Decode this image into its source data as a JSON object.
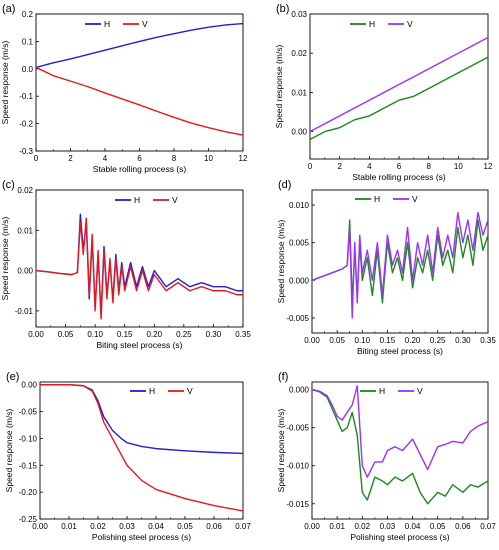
{
  "chart_data": [
    {
      "panel": "(a)",
      "type": "line",
      "xlabel": "Stable rolling process (s)",
      "ylabel": "Speed response (m/s)",
      "xlim": [
        0,
        12
      ],
      "ylim": [
        -0.3,
        0.2
      ],
      "xticks": [
        0,
        2,
        4,
        6,
        8,
        10,
        12
      ],
      "yticks": [
        -0.3,
        -0.2,
        -0.1,
        0.0,
        0.1,
        0.2
      ],
      "ytick_labels": [
        "-0.3",
        "-0.2",
        "-0.1",
        "0.0",
        "0.1",
        "0.2"
      ],
      "legend_placement": "top-center",
      "series": [
        {
          "name": "H",
          "color": "#1f1fd6",
          "x": [
            0,
            1,
            2,
            3,
            4,
            5,
            6,
            7,
            8,
            9,
            10,
            11,
            12
          ],
          "values": [
            0.005,
            0.022,
            0.036,
            0.052,
            0.068,
            0.084,
            0.1,
            0.115,
            0.128,
            0.141,
            0.152,
            0.16,
            0.165
          ]
        },
        {
          "name": "V",
          "color": "#e31a1c",
          "x": [
            0,
            1,
            2,
            3,
            4,
            5,
            6,
            7,
            8,
            9,
            10,
            11,
            12
          ],
          "values": [
            0.005,
            -0.025,
            -0.045,
            -0.065,
            -0.088,
            -0.11,
            -0.132,
            -0.155,
            -0.177,
            -0.198,
            -0.215,
            -0.23,
            -0.242
          ]
        }
      ]
    },
    {
      "panel": "(b)",
      "type": "line",
      "xlabel": "Stable rolling process (s)",
      "ylabel": "Speed response (m/s)",
      "xlim": [
        0,
        12
      ],
      "ylim": [
        -0.007,
        0.03
      ],
      "xticks": [
        0,
        2,
        4,
        6,
        8,
        10,
        12
      ],
      "yticks": [
        0.0,
        0.01,
        0.02,
        0.03
      ],
      "ytick_labels": [
        "0.00",
        "0.01",
        "0.02",
        "0.03"
      ],
      "legend_placement": "top-left",
      "series": [
        {
          "name": "H",
          "color": "#1a8a1a",
          "x": [
            0,
            1,
            2,
            3,
            4,
            5,
            6,
            7,
            8,
            9,
            10,
            11,
            12
          ],
          "values": [
            -0.002,
            0.0,
            0.001,
            0.003,
            0.004,
            0.006,
            0.008,
            0.009,
            0.011,
            0.013,
            0.015,
            0.017,
            0.019
          ]
        },
        {
          "name": "V",
          "color": "#9b30ff",
          "x": [
            0,
            1,
            2,
            3,
            4,
            5,
            6,
            7,
            8,
            9,
            10,
            11,
            12
          ],
          "values": [
            0.0,
            0.002,
            0.004,
            0.006,
            0.008,
            0.01,
            0.012,
            0.014,
            0.016,
            0.018,
            0.02,
            0.022,
            0.024
          ]
        }
      ]
    },
    {
      "panel": "(c)",
      "type": "line",
      "xlabel": "Biting steel process (s)",
      "ylabel": "Speed response (m/s)",
      "xlim": [
        0,
        0.35
      ],
      "ylim": [
        -0.014,
        0.02
      ],
      "xticks": [
        0.0,
        0.05,
        0.1,
        0.15,
        0.2,
        0.25,
        0.3,
        0.35
      ],
      "xtick_labels": [
        "0.00",
        "0.05",
        "0.10",
        "0.15",
        "0.20",
        "0.25",
        "0.30",
        "0.35"
      ],
      "yticks": [
        -0.01,
        0.0,
        0.01,
        0.02
      ],
      "ytick_labels": [
        "-0.01",
        "0.00",
        "0.01",
        "0.02"
      ],
      "legend_placement": "top-right",
      "series": [
        {
          "name": "H",
          "color": "#1f1fd6",
          "x": [
            0,
            0.02,
            0.04,
            0.06,
            0.07,
            0.075,
            0.08,
            0.085,
            0.09,
            0.095,
            0.1,
            0.105,
            0.11,
            0.115,
            0.12,
            0.125,
            0.13,
            0.135,
            0.14,
            0.145,
            0.15,
            0.16,
            0.17,
            0.18,
            0.19,
            0.2,
            0.22,
            0.24,
            0.26,
            0.28,
            0.3,
            0.32,
            0.34,
            0.35
          ],
          "values": [
            0.0,
            -0.0003,
            -0.0007,
            -0.001,
            -0.0005,
            0.014,
            0.005,
            0.012,
            -0.007,
            0.008,
            -0.009,
            0.004,
            -0.011,
            0.006,
            -0.006,
            0.002,
            -0.007,
            0.004,
            -0.005,
            0.002,
            -0.004,
            0.002,
            -0.004,
            0.001,
            -0.004,
            0.0,
            -0.004,
            -0.002,
            -0.004,
            -0.003,
            -0.004,
            -0.004,
            -0.005,
            -0.005
          ]
        },
        {
          "name": "V",
          "color": "#e31a1c",
          "x": [
            0,
            0.02,
            0.04,
            0.06,
            0.07,
            0.075,
            0.08,
            0.085,
            0.09,
            0.095,
            0.1,
            0.105,
            0.11,
            0.115,
            0.12,
            0.125,
            0.13,
            0.135,
            0.14,
            0.145,
            0.15,
            0.16,
            0.17,
            0.18,
            0.19,
            0.2,
            0.22,
            0.24,
            0.26,
            0.28,
            0.3,
            0.32,
            0.34,
            0.35
          ],
          "values": [
            0.0,
            -0.0003,
            -0.0007,
            -0.001,
            -0.0005,
            0.012,
            0.004,
            0.013,
            -0.006,
            0.009,
            -0.01,
            0.005,
            -0.012,
            0.005,
            -0.007,
            0.003,
            -0.008,
            0.003,
            -0.006,
            0.001,
            -0.005,
            0.001,
            -0.005,
            0.0,
            -0.005,
            -0.001,
            -0.005,
            -0.003,
            -0.005,
            -0.004,
            -0.005,
            -0.005,
            -0.006,
            -0.006
          ]
        }
      ]
    },
    {
      "panel": "(d)",
      "type": "line",
      "xlabel": "Biting steel process (s)",
      "ylabel": "Speed response (m/s)",
      "xlim": [
        0,
        0.35
      ],
      "ylim": [
        -0.007,
        0.012
      ],
      "xticks": [
        0.0,
        0.05,
        0.1,
        0.15,
        0.2,
        0.25,
        0.3,
        0.35
      ],
      "xtick_labels": [
        "0.00",
        "0.05",
        "0.10",
        "0.15",
        "0.20",
        "0.25",
        "0.30",
        "0.35"
      ],
      "yticks": [
        -0.005,
        0.0,
        0.005,
        0.01
      ],
      "ytick_labels": [
        "-0.005",
        "0.000",
        "0.005",
        "0.010"
      ],
      "legend_placement": "top-center",
      "series": [
        {
          "name": "H",
          "color": "#1a8a1a",
          "x": [
            0,
            0.02,
            0.04,
            0.06,
            0.07,
            0.075,
            0.08,
            0.085,
            0.09,
            0.095,
            0.1,
            0.11,
            0.12,
            0.13,
            0.14,
            0.15,
            0.16,
            0.17,
            0.18,
            0.19,
            0.2,
            0.21,
            0.22,
            0.23,
            0.24,
            0.25,
            0.26,
            0.27,
            0.28,
            0.29,
            0.3,
            0.31,
            0.32,
            0.33,
            0.34,
            0.35
          ],
          "values": [
            0.0,
            0.0005,
            0.001,
            0.0015,
            0.002,
            0.008,
            -0.003,
            0.004,
            -0.002,
            0.005,
            0.0,
            0.003,
            -0.002,
            0.004,
            -0.003,
            0.005,
            0.001,
            0.003,
            0.0,
            0.005,
            -0.001,
            0.003,
            0.001,
            0.004,
            0.0,
            0.006,
            0.002,
            0.004,
            0.001,
            0.007,
            0.003,
            0.006,
            0.002,
            0.008,
            0.004,
            0.006
          ]
        },
        {
          "name": "V",
          "color": "#9b30ff",
          "x": [
            0,
            0.02,
            0.04,
            0.06,
            0.07,
            0.075,
            0.08,
            0.085,
            0.09,
            0.095,
            0.1,
            0.11,
            0.12,
            0.13,
            0.14,
            0.15,
            0.16,
            0.17,
            0.18,
            0.19,
            0.2,
            0.21,
            0.22,
            0.23,
            0.24,
            0.25,
            0.26,
            0.27,
            0.28,
            0.29,
            0.3,
            0.31,
            0.32,
            0.33,
            0.34,
            0.35
          ],
          "values": [
            0.0,
            0.0005,
            0.001,
            0.0015,
            0.002,
            0.007,
            -0.005,
            0.005,
            -0.003,
            0.006,
            0.001,
            0.004,
            0.0,
            0.005,
            -0.002,
            0.006,
            0.002,
            0.004,
            0.001,
            0.007,
            0.0,
            0.005,
            0.002,
            0.006,
            0.001,
            0.007,
            0.003,
            0.006,
            0.003,
            0.009,
            0.005,
            0.008,
            0.004,
            0.009,
            0.006,
            0.008
          ]
        }
      ]
    },
    {
      "panel": "(e)",
      "type": "line",
      "xlabel": "Polishing steel process (s)",
      "ylabel": "Speed response (m/s)",
      "xlim": [
        0,
        0.07
      ],
      "ylim": [
        -0.25,
        0.005
      ],
      "xticks": [
        0.0,
        0.01,
        0.02,
        0.03,
        0.04,
        0.05,
        0.06,
        0.07
      ],
      "xtick_labels": [
        "0.00",
        "0.01",
        "0.02",
        "0.03",
        "0.04",
        "0.05",
        "0.06",
        "0.07"
      ],
      "yticks": [
        -0.25,
        -0.2,
        -0.15,
        -0.1,
        -0.05,
        0.0
      ],
      "ytick_labels": [
        "-0.25",
        "-0.20",
        "-0.15",
        "-0.10",
        "-0.05",
        "0.00"
      ],
      "legend_placement": "top-right",
      "series": [
        {
          "name": "H",
          "color": "#1f1fd6",
          "x": [
            0,
            0.005,
            0.01,
            0.015,
            0.018,
            0.02,
            0.022,
            0.025,
            0.028,
            0.03,
            0.035,
            0.04,
            0.05,
            0.06,
            0.07
          ],
          "values": [
            0.0,
            0.0,
            0.0,
            -0.002,
            -0.01,
            -0.03,
            -0.06,
            -0.085,
            -0.1,
            -0.108,
            -0.115,
            -0.119,
            -0.123,
            -0.126,
            -0.128
          ]
        },
        {
          "name": "V",
          "color": "#e31a1c",
          "x": [
            0,
            0.005,
            0.01,
            0.015,
            0.018,
            0.02,
            0.022,
            0.025,
            0.028,
            0.03,
            0.035,
            0.04,
            0.05,
            0.06,
            0.07
          ],
          "values": [
            0.0,
            0.0,
            0.0,
            -0.002,
            -0.012,
            -0.035,
            -0.07,
            -0.1,
            -0.13,
            -0.15,
            -0.178,
            -0.195,
            -0.212,
            -0.225,
            -0.235
          ]
        }
      ]
    },
    {
      "panel": "(f)",
      "type": "line",
      "xlabel": "Polishing steel process (s)",
      "ylabel": "Speed response (m/s)",
      "xlim": [
        0,
        0.07
      ],
      "ylim": [
        -0.017,
        0.001
      ],
      "xticks": [
        0.0,
        0.01,
        0.02,
        0.03,
        0.04,
        0.05,
        0.06,
        0.07
      ],
      "xtick_labels": [
        "0.00",
        "0.01",
        "0.02",
        "0.03",
        "0.04",
        "0.05",
        "0.06",
        "0.07"
      ],
      "yticks": [
        -0.015,
        -0.01,
        -0.005,
        0.0
      ],
      "ytick_labels": [
        "-0.015",
        "-0.010",
        "-0.005",
        "0.000"
      ],
      "legend_placement": "top-center",
      "series": [
        {
          "name": "H",
          "color": "#1a8a1a",
          "x": [
            0,
            0.003,
            0.006,
            0.008,
            0.01,
            0.012,
            0.014,
            0.016,
            0.018,
            0.02,
            0.022,
            0.025,
            0.028,
            0.03,
            0.033,
            0.036,
            0.04,
            0.043,
            0.046,
            0.05,
            0.053,
            0.056,
            0.06,
            0.063,
            0.066,
            0.07
          ],
          "values": [
            0.0,
            -0.0003,
            -0.001,
            -0.0025,
            -0.004,
            -0.0055,
            -0.005,
            -0.003,
            -0.006,
            -0.0135,
            -0.0145,
            -0.0115,
            -0.012,
            -0.0125,
            -0.0115,
            -0.012,
            -0.011,
            -0.0135,
            -0.015,
            -0.0135,
            -0.014,
            -0.0125,
            -0.0135,
            -0.0125,
            -0.0128,
            -0.012
          ]
        },
        {
          "name": "V",
          "color": "#9b30ff",
          "x": [
            0,
            0.003,
            0.006,
            0.008,
            0.01,
            0.012,
            0.014,
            0.016,
            0.018,
            0.02,
            0.022,
            0.025,
            0.028,
            0.03,
            0.033,
            0.036,
            0.04,
            0.043,
            0.046,
            0.05,
            0.053,
            0.056,
            0.06,
            0.063,
            0.066,
            0.07
          ],
          "values": [
            0.0,
            -0.0002,
            -0.0008,
            -0.002,
            -0.0035,
            -0.004,
            -0.003,
            -0.002,
            0.0005,
            -0.01,
            -0.0115,
            -0.0095,
            -0.0095,
            -0.008,
            -0.0075,
            -0.008,
            -0.0065,
            -0.0085,
            -0.0105,
            -0.0075,
            -0.0072,
            -0.0068,
            -0.007,
            -0.0055,
            -0.0048,
            -0.0042
          ]
        }
      ]
    }
  ]
}
